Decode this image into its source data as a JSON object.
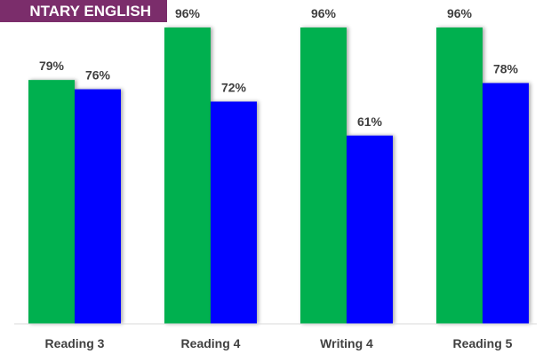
{
  "chart_data": {
    "type": "bar",
    "title": "NTARY ENGLISH",
    "categories": [
      "Reading 3",
      "Reading 4",
      "Writing 4",
      "Reading 5"
    ],
    "series": [
      {
        "color": "#00b050",
        "values": [
          79,
          96,
          96,
          96
        ],
        "labels": [
          "79%",
          "96%",
          "96%",
          "96%"
        ]
      },
      {
        "color": "#0000ff",
        "values": [
          76,
          72,
          61,
          78
        ],
        "labels": [
          "76%",
          "72%",
          "61%",
          "78%"
        ]
      }
    ],
    "ylim": [
      0,
      100
    ],
    "grid": false,
    "legend": "none"
  }
}
